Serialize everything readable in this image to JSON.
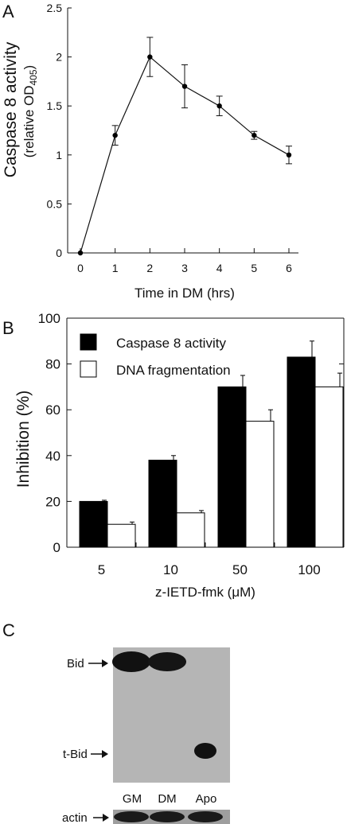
{
  "chart_data": [
    {
      "panel": "A",
      "type": "line",
      "xlabel": "Time in DM (hrs)",
      "ylabel": "Caspase 8 activity",
      "ylabel_sub": "(relative OD",
      "ylabel_subscript": "405",
      "ylabel_close": ")",
      "x": [
        0,
        1,
        2,
        3,
        4,
        5,
        6
      ],
      "y": [
        0,
        1.2,
        2.0,
        1.7,
        1.5,
        1.2,
        1.0
      ],
      "error": [
        0,
        0.1,
        0.2,
        0.22,
        0.1,
        0.04,
        0.09
      ],
      "xticks": [
        "0",
        "1",
        "2",
        "3",
        "4",
        "5",
        "6"
      ],
      "yticks": [
        "0",
        "0.5",
        "1",
        "1.5",
        "2",
        "2.5"
      ],
      "xlim": [
        0,
        6
      ],
      "ylim": [
        0,
        2.5
      ],
      "color": "#000000"
    },
    {
      "panel": "B",
      "type": "bar",
      "xlabel": "z-IETD-fmk (μM)",
      "ylabel": "Inhibition (%)",
      "categories": [
        "5",
        "10",
        "50",
        "100"
      ],
      "yticks": [
        "0",
        "20",
        "40",
        "60",
        "80",
        "100"
      ],
      "ylim": [
        0,
        100
      ],
      "legend_position": "top-left",
      "series": [
        {
          "name": "Caspase 8 activity",
          "values": [
            20,
            38,
            70,
            83
          ],
          "errors": [
            0.5,
            2,
            5,
            7
          ],
          "color": "#000000"
        },
        {
          "name": "DNA fragmentation",
          "values": [
            10,
            15,
            55,
            70
          ],
          "errors": [
            1,
            1,
            5,
            6
          ],
          "color": "#ffffff"
        }
      ]
    }
  ],
  "panels": {
    "a": "A",
    "b": "B",
    "c": "C"
  },
  "blot": {
    "bid_label": "Bid",
    "tbid_label": "t-Bid",
    "actin_label": "actin",
    "lanes": [
      "GM",
      "DM",
      "Apo"
    ]
  }
}
